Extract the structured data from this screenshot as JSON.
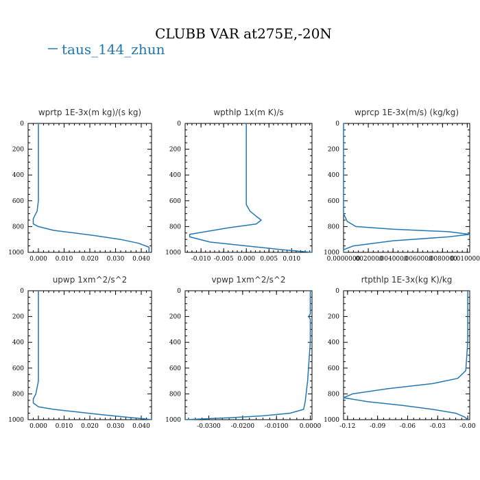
{
  "title": "CLUBB VAR at275E,-20N",
  "legend": {
    "label": "taus_144_zhun",
    "color": "#1f77b4"
  },
  "chart_data": [
    {
      "type": "line",
      "title": "wprtp  1E-3x(m kg)/(s kg)",
      "xlim": [
        -0.004,
        0.044
      ],
      "ylim": [
        1000,
        0
      ],
      "xticks": [
        0,
        0.01,
        0.02,
        0.03,
        0.04
      ],
      "xtick_labels": [
        "0.000",
        "0.010",
        "0.020",
        "0.030",
        "0.040"
      ],
      "yticks": [
        0,
        200,
        400,
        600,
        800,
        1000
      ],
      "ytick_labels": [
        "0",
        "200",
        "400",
        "600",
        "800",
        "1000"
      ],
      "series": [
        {
          "name": "taus_144_zhun",
          "x": [
            0.0,
            0.0,
            0.0,
            0.0,
            -0.0005,
            -0.002,
            -0.002,
            0.0,
            0.006,
            0.014,
            0.022,
            0.032,
            0.039,
            0.043,
            0.043
          ],
          "y": [
            0,
            200,
            400,
            600,
            680,
            740,
            780,
            800,
            830,
            850,
            870,
            900,
            930,
            960,
            1000
          ]
        }
      ]
    },
    {
      "type": "line",
      "title": "wpthlp  1x(m K)/s",
      "xlim": [
        -0.0135,
        0.0145
      ],
      "ylim": [
        1000,
        0
      ],
      "xticks": [
        -0.01,
        -0.005,
        0,
        0.005,
        0.01
      ],
      "xtick_labels": [
        "-0.010",
        "-0.005",
        "0.000",
        "0.005",
        "0.010"
      ],
      "yticks": [
        0,
        200,
        400,
        600,
        800,
        1000
      ],
      "ytick_labels": [
        "0",
        "200",
        "400",
        "600",
        "800",
        "1000"
      ],
      "series": [
        {
          "name": "taus_144_zhun",
          "x": [
            0.0,
            0.0,
            0.0,
            0.0,
            0.0,
            0.0008,
            0.0022,
            0.0033,
            0.0022,
            -0.004,
            -0.0125,
            -0.0125,
            -0.008,
            0.0,
            0.008,
            0.0145
          ],
          "y": [
            0,
            200,
            400,
            500,
            630,
            680,
            720,
            750,
            780,
            810,
            860,
            880,
            920,
            950,
            980,
            1000
          ]
        }
      ]
    },
    {
      "type": "line",
      "title": "wprcp  1E-3x(m/s) (kg/kg)",
      "xlim": [
        0,
        0.0102
      ],
      "ylim": [
        1000,
        0
      ],
      "xticks": [
        0,
        0.002,
        0.004,
        0.006,
        0.008,
        0.01
      ],
      "xtick_labels": [
        "0.0000000",
        ".0020000",
        ".0040000",
        ".0060000",
        ".0080000",
        "0.0100000"
      ],
      "yticks": [
        0,
        200,
        400,
        600,
        800,
        1000
      ],
      "ytick_labels": [
        "0",
        "200",
        "400",
        "600",
        "800",
        "1000"
      ],
      "series": [
        {
          "name": "taus_144_zhun",
          "x": [
            0.0,
            0.0,
            0.0,
            0.0,
            0.0003,
            0.001,
            0.004,
            0.0085,
            0.0102,
            0.0085,
            0.004,
            0.0008,
            0.0,
            0.0
          ],
          "y": [
            0,
            200,
            400,
            700,
            760,
            800,
            820,
            840,
            860,
            880,
            910,
            950,
            980,
            1000
          ]
        }
      ]
    },
    {
      "type": "line",
      "title": "upwp  1xm^2/s^2",
      "xlim": [
        -0.004,
        0.044
      ],
      "ylim": [
        1000,
        0
      ],
      "xticks": [
        0,
        0.01,
        0.02,
        0.03,
        0.04
      ],
      "xtick_labels": [
        "0.000",
        "0.010",
        "0.020",
        "0.030",
        "0.040"
      ],
      "yticks": [
        0,
        200,
        400,
        600,
        800,
        1000
      ],
      "ytick_labels": [
        "0",
        "200",
        "400",
        "600",
        "800",
        "1000"
      ],
      "series": [
        {
          "name": "taus_144_zhun",
          "x": [
            0.0,
            0.0,
            0.0,
            0.0,
            -0.001,
            -0.002,
            -0.002,
            0.0,
            0.006,
            0.015,
            0.024,
            0.034,
            0.042,
            0.044
          ],
          "y": [
            0,
            200,
            400,
            700,
            800,
            840,
            870,
            900,
            920,
            940,
            960,
            980,
            995,
            1000
          ]
        }
      ]
    },
    {
      "type": "line",
      "title": "vpwp  1xm^2/s^2",
      "xlim": [
        -0.037,
        0.0005
      ],
      "ylim": [
        1000,
        0
      ],
      "xticks": [
        -0.03,
        -0.02,
        -0.01,
        0
      ],
      "xtick_labels": [
        "-0.0300",
        "-0.0200",
        "-0.0100",
        "0.0000"
      ],
      "yticks": [
        0,
        200,
        400,
        600,
        800,
        1000
      ],
      "ytick_labels": [
        "0",
        "200",
        "400",
        "600",
        "800",
        "1000"
      ],
      "series": [
        {
          "name": "taus_144_zhun",
          "x": [
            0.0,
            0.0,
            -0.0005,
            0.0,
            0.0,
            -0.0008,
            -0.0015,
            -0.002,
            -0.006,
            -0.014,
            -0.024,
            -0.033,
            -0.037
          ],
          "y": [
            0,
            180,
            200,
            220,
            400,
            700,
            860,
            920,
            950,
            970,
            985,
            995,
            1000
          ]
        }
      ]
    },
    {
      "type": "line",
      "title": "rtpthlp  1E-3x(kg K)/kg",
      "xlim": [
        -0.124,
        0.002
      ],
      "ylim": [
        1000,
        0
      ],
      "xticks": [
        -0.12,
        -0.09,
        -0.06,
        -0.03,
        0
      ],
      "xtick_labels": [
        "-0.12",
        "-0.09",
        "-0.06",
        "-0.03",
        "-0.00"
      ],
      "yticks": [
        0,
        200,
        400,
        600,
        800,
        1000
      ],
      "ytick_labels": [
        "0",
        "200",
        "400",
        "600",
        "800",
        "1000"
      ],
      "series": [
        {
          "name": "taus_144_zhun",
          "x": [
            0.0,
            0.0,
            0.0,
            -0.002,
            -0.01,
            -0.035,
            -0.08,
            -0.115,
            -0.124,
            -0.1,
            -0.065,
            -0.035,
            -0.012,
            -0.003,
            0.0
          ],
          "y": [
            0,
            200,
            400,
            620,
            680,
            720,
            760,
            800,
            830,
            860,
            890,
            920,
            950,
            980,
            1000
          ]
        }
      ]
    }
  ]
}
